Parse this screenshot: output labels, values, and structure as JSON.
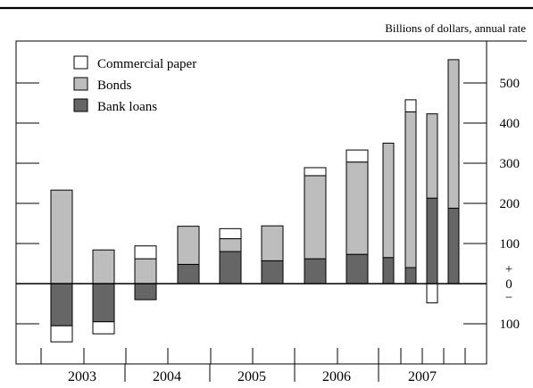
{
  "chart_data": {
    "type": "bar",
    "stacked": true,
    "title": "",
    "units": "Billions of dollars, annual rate",
    "xlabel": "",
    "ylabel": "",
    "ylim": [
      -150,
      560
    ],
    "y_ticks": [
      {
        "value": 500,
        "label": "500"
      },
      {
        "value": 400,
        "label": "400"
      },
      {
        "value": 300,
        "label": "300"
      },
      {
        "value": 200,
        "label": "200"
      },
      {
        "value": 100,
        "label": "100"
      },
      {
        "value": -100,
        "label": "100"
      }
    ],
    "zero_label": {
      "plus": "+",
      "zero": "0",
      "minus": "−"
    },
    "legend": {
      "position": "top-left",
      "entries": [
        {
          "name": "Commercial paper",
          "color": "#ffffff"
        },
        {
          "name": "Bonds",
          "color": "#bdbdbd"
        },
        {
          "name": "Bank loans",
          "color": "#666666"
        }
      ]
    },
    "years": [
      "2003",
      "2004",
      "2005",
      "2006",
      "2007"
    ],
    "categories": [
      "2003 H1",
      "2003 H2",
      "2004 H1",
      "2004 H2",
      "2005 H1",
      "2005 H2",
      "2006 H1",
      "2006 H2",
      "2007 Q1",
      "2007 Q2",
      "2007 Q3",
      "2007 Q4"
    ],
    "series": [
      {
        "name": "Bank loans",
        "values": [
          -105,
          -95,
          -40,
          48,
          80,
          57,
          62,
          73,
          65,
          40,
          213,
          188
        ]
      },
      {
        "name": "Bonds",
        "values": [
          233,
          84,
          62,
          95,
          32,
          87,
          207,
          230,
          285,
          388,
          210,
          370
        ]
      },
      {
        "name": "Commercial paper",
        "values": [
          -40,
          -30,
          32,
          0,
          25,
          0,
          20,
          30,
          0,
          30,
          -48,
          0
        ]
      }
    ]
  }
}
